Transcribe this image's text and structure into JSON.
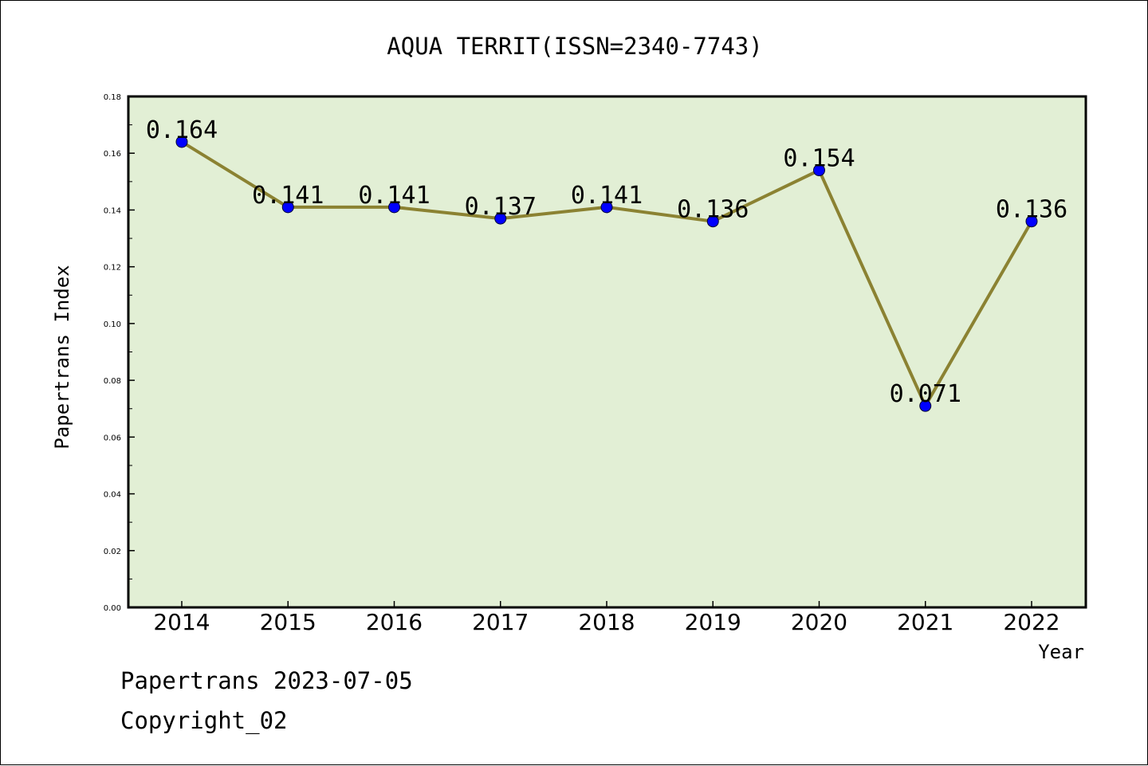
{
  "chart_data": {
    "type": "line",
    "title": "AQUA TERRIT(ISSN=2340-7743)",
    "xlabel": "Year",
    "ylabel": "Papertrans Index",
    "categories": [
      "2014",
      "2015",
      "2016",
      "2017",
      "2018",
      "2019",
      "2020",
      "2021",
      "2022"
    ],
    "series": [
      {
        "values": [
          0.164,
          0.141,
          0.141,
          0.137,
          0.141,
          0.136,
          0.154,
          0.071,
          0.136
        ],
        "data_labels": [
          "0.164",
          "0.141",
          "0.141",
          "0.137",
          "0.141",
          "0.136",
          "0.154",
          "0.071",
          "0.136"
        ]
      }
    ],
    "ylim": [
      0,
      0.18
    ],
    "y_ticks": [
      "0.00",
      "0.02",
      "0.04",
      "0.06",
      "0.08",
      "0.10",
      "0.12",
      "0.14",
      "0.16",
      "0.18"
    ],
    "grid": false,
    "colors": {
      "plot_background": "#e2efd5",
      "line": "#8b8232",
      "marker": "#0000ff"
    }
  },
  "footer": {
    "source_line": "Papertrans 2023-07-05",
    "copyright": "Copyright_02"
  }
}
